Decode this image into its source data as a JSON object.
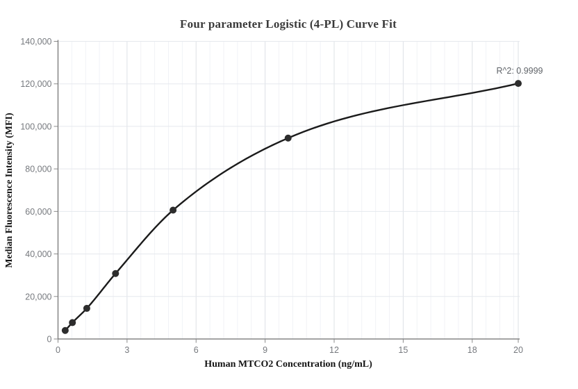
{
  "chart_data": {
    "type": "scatter",
    "title": "Four parameter Logistic (4-PL) Curve Fit",
    "xlabel": "Human MTCO2 Concentration (ng/mL)",
    "ylabel": "Median Fluorescence Intensity (MFI)",
    "x": [
      0.3125,
      0.625,
      1.25,
      2.5,
      5,
      10,
      20
    ],
    "y": [
      4000,
      7700,
      14400,
      30800,
      60600,
      94500,
      120200
    ],
    "fit_curve": "4-PL logistic fit through points",
    "annotation": "R^2: 0.9999",
    "xlim": [
      0,
      20
    ],
    "ylim": [
      0,
      140000
    ],
    "x_ticks": [
      0,
      3,
      6,
      9,
      12,
      15,
      18,
      20
    ],
    "x_tick_labels": [
      "0",
      "3",
      "6",
      "9",
      "12",
      "15",
      "18",
      "20"
    ],
    "y_ticks": [
      0,
      20000,
      40000,
      60000,
      80000,
      100000,
      120000,
      140000
    ],
    "y_tick_labels": [
      "0",
      "20,000",
      "40,000",
      "60,000",
      "80,000",
      "100,000",
      "120,000",
      "140,000"
    ],
    "x_major_step": 3,
    "x_minor_step": 0.6,
    "grid": "horizontal major lines; vertical major and minor lines",
    "legend": "none",
    "colors": {
      "curve": "#1b1b1b",
      "point": "#2d2d2d",
      "h_gridline": "#e5e8ed",
      "v_major_gridline": "#dde0e6",
      "v_minor_gridline": "#f1f2f6",
      "axis_line": "#6e6e6e",
      "tick_mark": "#8a8a8a",
      "tick_label": "#76797e",
      "annotation": "#5f6368",
      "title": "#3a3a3a",
      "axis_title": "#141414"
    }
  }
}
